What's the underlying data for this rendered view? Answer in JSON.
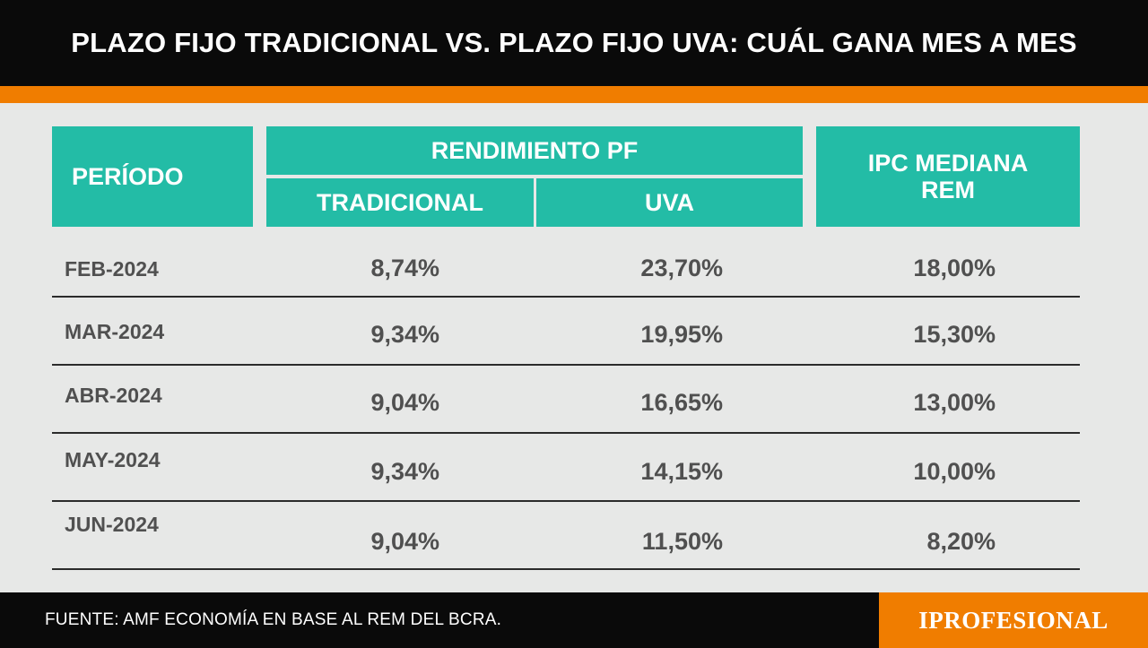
{
  "title": "PLAZO FIJO TRADICIONAL VS. PLAZO FIJO UVA: CUÁL GANA MES A MES",
  "table": {
    "headers": {
      "period": "PERÍODO",
      "group": "RENDIMIENTO PF",
      "tradicional": "TRADICIONAL",
      "uva": "UVA",
      "ipc_line1": "IPC MEDIANA",
      "ipc_line2": "REM"
    },
    "rows": [
      {
        "period": "FEB-2024",
        "tradicional": "8,74%",
        "uva": "23,70%",
        "ipc": "18,00%"
      },
      {
        "period": "MAR-2024",
        "tradicional": "9,34%",
        "uva": "19,95%",
        "ipc": "15,30%"
      },
      {
        "period": "ABR-2024",
        "tradicional": "9,04%",
        "uva": "16,65%",
        "ipc": "13,00%"
      },
      {
        "period": "MAY-2024",
        "tradicional": "9,34%",
        "uva": "14,15%",
        "ipc": "10,00%"
      },
      {
        "period": "JUN-2024",
        "tradicional": "9,04%",
        "uva": "11,50%",
        "ipc": "8,20%"
      }
    ]
  },
  "chart_data": {
    "type": "table",
    "title": "PLAZO FIJO TRADICIONAL VS. PLAZO FIJO UVA: CUÁL GANA MES A MES",
    "columns": [
      "PERÍODO",
      "TRADICIONAL",
      "UVA",
      "IPC MEDIANA REM"
    ],
    "categories": [
      "FEB-2024",
      "MAR-2024",
      "ABR-2024",
      "MAY-2024",
      "JUN-2024"
    ],
    "series": [
      {
        "name": "TRADICIONAL",
        "values": [
          8.74,
          9.34,
          9.04,
          9.34,
          9.04
        ]
      },
      {
        "name": "UVA",
        "values": [
          23.7,
          19.95,
          16.65,
          14.15,
          11.5
        ]
      },
      {
        "name": "IPC MEDIANA REM",
        "values": [
          18.0,
          15.3,
          13.0,
          10.0,
          8.2
        ]
      }
    ]
  },
  "footer": {
    "source": "FUENTE: AMF ECONOMÍA EN BASE AL REM DEL BCRA.",
    "logo": "IPROFESIONAL"
  },
  "colors": {
    "header_teal": "#23bca6",
    "accent_orange": "#f07d00",
    "background": "#e7e8e7",
    "bar_black": "#0a0a0a"
  }
}
